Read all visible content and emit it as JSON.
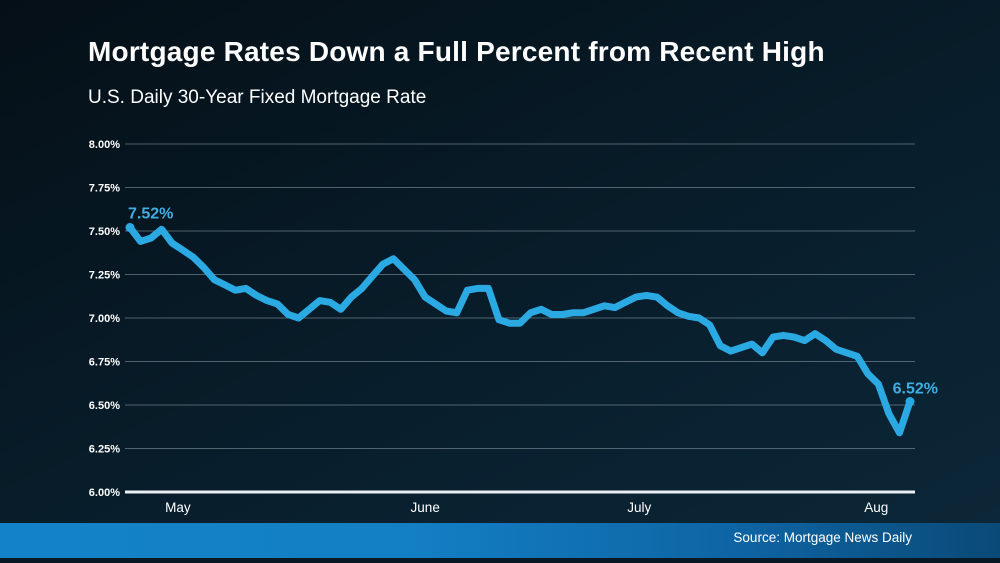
{
  "header": {
    "title": "Mortgage Rates Down a Full Percent from Recent High",
    "subtitle": "U.S. Daily 30-Year Fixed Mortgage Rate"
  },
  "footer": {
    "source": "Source: Mortgage News Daily"
  },
  "chart_data": {
    "type": "line",
    "title": "Mortgage Rates Down a Full Percent from Recent High",
    "subtitle": "U.S. Daily 30-Year Fixed Mortgage Rate",
    "xlabel": "",
    "ylabel": "",
    "ylim": [
      6.0,
      8.0
    ],
    "grid": true,
    "legend": false,
    "y_ticks": [
      "8.00%",
      "7.75%",
      "7.50%",
      "7.25%",
      "7.00%",
      "6.75%",
      "6.50%",
      "6.25%",
      "6.00%"
    ],
    "y_tick_values": [
      8.0,
      7.75,
      7.5,
      7.25,
      7.0,
      6.75,
      6.5,
      6.25,
      6.0
    ],
    "x_ticks": [
      {
        "label": "May",
        "pos": 0.067
      },
      {
        "label": "June",
        "pos": 0.38
      },
      {
        "label": "July",
        "pos": 0.651
      },
      {
        "label": "Aug",
        "pos": 0.951
      }
    ],
    "series": [
      {
        "name": "U.S. Daily 30-Year Fixed Mortgage Rate",
        "values": [
          7.52,
          7.44,
          7.46,
          7.51,
          7.43,
          7.39,
          7.35,
          7.29,
          7.22,
          7.19,
          7.16,
          7.17,
          7.13,
          7.1,
          7.08,
          7.02,
          7.0,
          7.05,
          7.1,
          7.09,
          7.05,
          7.12,
          7.17,
          7.24,
          7.31,
          7.34,
          7.28,
          7.22,
          7.12,
          7.08,
          7.04,
          7.03,
          7.16,
          7.17,
          7.17,
          6.99,
          6.97,
          6.97,
          7.03,
          7.05,
          7.02,
          7.02,
          7.03,
          7.03,
          7.05,
          7.07,
          7.06,
          7.09,
          7.12,
          7.13,
          7.12,
          7.07,
          7.03,
          7.01,
          7.0,
          6.96,
          6.84,
          6.81,
          6.83,
          6.85,
          6.8,
          6.89,
          6.9,
          6.89,
          6.87,
          6.91,
          6.87,
          6.82,
          6.8,
          6.78,
          6.68,
          6.62,
          6.45,
          6.34,
          6.52
        ]
      }
    ],
    "annotations": [
      {
        "text": "7.52%",
        "point_index": 0,
        "anchor": "start"
      },
      {
        "text": "6.52%",
        "point_index": 74,
        "anchor": "end"
      }
    ],
    "colors": {
      "line": "#2BA9E3",
      "annotation": "#3FAFE3",
      "grid": "#8d9eaa",
      "axis_baseline": "#e9eff3",
      "tick_label": "#ffffff"
    }
  }
}
